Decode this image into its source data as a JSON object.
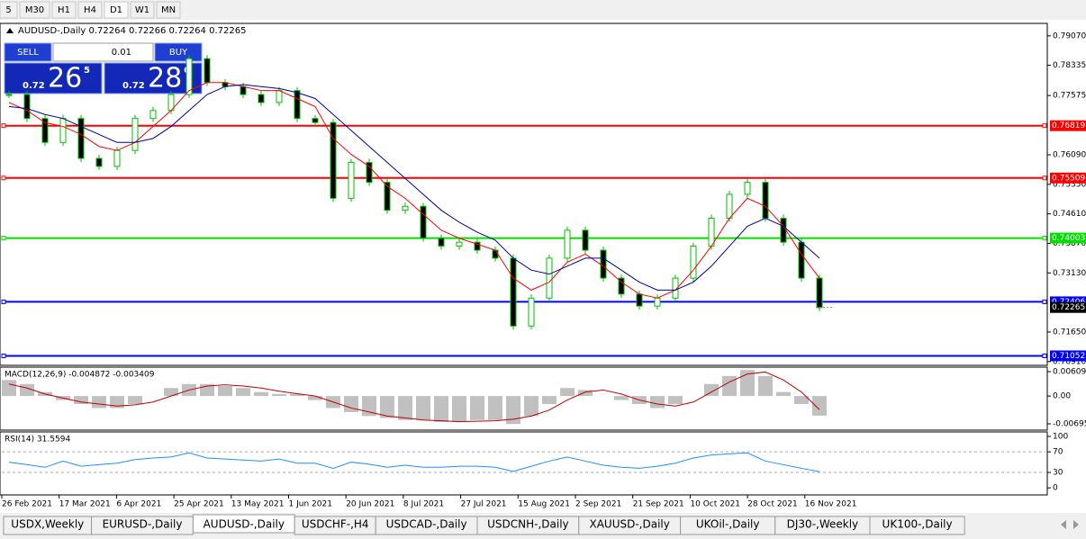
{
  "toolbar": {
    "timeframes": [
      "5",
      "M30",
      "H1",
      "H4",
      "D1",
      "W1",
      "MN"
    ]
  },
  "symbol_header": "AUDUSD-,Daily  0.72264 0.72266 0.72264 0.72265",
  "trade_panel": {
    "sell_label": "SELL",
    "buy_label": "BUY",
    "volume": "0.01",
    "sell_price": {
      "big": "0.72",
      "main": "26",
      "sup": "5"
    },
    "buy_price": {
      "big": "0.72",
      "main": "28",
      "sup": "6"
    }
  },
  "price_chart": {
    "ylim": [
      0.7086,
      0.7936
    ],
    "yticks": [
      {
        "value": 0.7907,
        "label": "0.79070"
      },
      {
        "value": 0.78335,
        "label": "0.78335"
      },
      {
        "value": 0.77575,
        "label": "0.77575"
      },
      {
        "value": 0.7609,
        "label": "0.76090"
      },
      {
        "value": 0.7535,
        "label": "0.75350"
      },
      {
        "value": 0.7461,
        "label": "0.74610"
      },
      {
        "value": 0.7387,
        "label": "0.73870"
      },
      {
        "value": 0.7313,
        "label": "0.73130"
      },
      {
        "value": 0.7165,
        "label": "0.71650"
      },
      {
        "value": 0.7091,
        "label": "0.70910"
      }
    ],
    "levels": [
      {
        "price": 0.76819,
        "color": "#ff0000"
      },
      {
        "price": 0.75509,
        "color": "#ff0000"
      },
      {
        "price": 0.74003,
        "color": "#00e000"
      },
      {
        "price": 0.72406,
        "color": "#0000ff"
      },
      {
        "price": 0.71052,
        "color": "#0000ff"
      }
    ],
    "current_price": 0.72265,
    "candles": [
      0.776,
      0.77,
      0.764,
      0.77,
      0.76,
      0.758,
      0.762,
      0.77,
      0.772,
      0.776,
      0.785,
      0.779,
      0.778,
      0.776,
      0.774,
      0.777,
      0.77,
      0.769,
      0.75,
      0.759,
      0.754,
      0.747,
      0.748,
      0.74,
      0.738,
      0.739,
      0.737,
      0.735,
      0.718,
      0.725,
      0.735,
      0.742,
      0.737,
      0.73,
      0.726,
      0.723,
      0.725,
      0.73,
      0.738,
      0.745,
      0.751,
      0.754,
      0.745,
      0.739,
      0.73,
      0.7226
    ],
    "ma_fast": {
      "color": "#ff0000",
      "values": [
        0.774,
        0.772,
        0.769,
        0.768,
        0.766,
        0.763,
        0.762,
        0.764,
        0.768,
        0.772,
        0.777,
        0.779,
        0.779,
        0.778,
        0.777,
        0.777,
        0.775,
        0.773,
        0.765,
        0.761,
        0.758,
        0.753,
        0.75,
        0.746,
        0.742,
        0.74,
        0.7385,
        0.737,
        0.73,
        0.727,
        0.729,
        0.734,
        0.736,
        0.733,
        0.729,
        0.726,
        0.725,
        0.727,
        0.732,
        0.738,
        0.745,
        0.75,
        0.748,
        0.743,
        0.736,
        0.73
      ]
    },
    "ma_slow": {
      "color": "#0000a0",
      "values": [
        0.773,
        0.7725,
        0.771,
        0.77,
        0.768,
        0.766,
        0.764,
        0.764,
        0.765,
        0.768,
        0.772,
        0.776,
        0.778,
        0.7785,
        0.778,
        0.7775,
        0.7765,
        0.775,
        0.771,
        0.767,
        0.763,
        0.759,
        0.755,
        0.751,
        0.747,
        0.744,
        0.7415,
        0.7395,
        0.735,
        0.732,
        0.731,
        0.733,
        0.735,
        0.735,
        0.732,
        0.729,
        0.727,
        0.727,
        0.729,
        0.733,
        0.738,
        0.743,
        0.745,
        0.743,
        0.739,
        0.735
      ]
    }
  },
  "macd": {
    "label": "MACD(12,26,9) -0.004872 -0.003409",
    "ylim": [
      -0.0083,
      0.007
    ],
    "yticks": [
      {
        "value": 0.006094,
        "label": "0.00609"
      },
      {
        "value": 0,
        "label": "0.00"
      },
      {
        "value": -0.006951,
        "label": "-0.00695"
      }
    ],
    "histogram": [
      0.004,
      0.003,
      0.001,
      -0.001,
      -0.002,
      -0.003,
      -0.003,
      -0.002,
      0,
      0.002,
      0.003,
      0.003,
      0.0025,
      0.002,
      0.001,
      0.0005,
      0.0005,
      -0.001,
      -0.003,
      -0.004,
      -0.005,
      -0.0055,
      -0.006,
      -0.006,
      -0.0065,
      -0.0065,
      -0.006,
      -0.006,
      -0.007,
      -0.005,
      -0.002,
      0.002,
      0.0015,
      0,
      -0.001,
      -0.002,
      -0.003,
      -0.002,
      0,
      0.003,
      0.005,
      0.0065,
      0.005,
      0.001,
      -0.002,
      -0.0049
    ],
    "signal": {
      "color": "#c00000",
      "values": [
        0.003,
        0.002,
        0.0005,
        -0.0005,
        -0.0015,
        -0.002,
        -0.0025,
        -0.0022,
        -0.0015,
        0,
        0.0015,
        0.0025,
        0.0028,
        0.0025,
        0.002,
        0.0012,
        0.0006,
        0,
        -0.0015,
        -0.003,
        -0.004,
        -0.005,
        -0.0055,
        -0.006,
        -0.0062,
        -0.0064,
        -0.0063,
        -0.0062,
        -0.0058,
        -0.005,
        -0.0035,
        -0.001,
        0.001,
        0.0015,
        0.0005,
        -0.001,
        -0.002,
        -0.0025,
        -0.0015,
        0.001,
        0.0035,
        0.0055,
        0.006,
        0.004,
        0.001,
        -0.0034
      ]
    }
  },
  "rsi": {
    "label": "RSI(14) 31.5594",
    "ylim": [
      -12,
      107
    ],
    "yticks": [
      100,
      70,
      30,
      0
    ],
    "color": "#1e90ff",
    "values": [
      50,
      45,
      40,
      52,
      42,
      45,
      48,
      55,
      58,
      60,
      68,
      58,
      56,
      54,
      52,
      56,
      48,
      48,
      38,
      50,
      46,
      40,
      44,
      40,
      40,
      42,
      42,
      40,
      32,
      42,
      52,
      60,
      52,
      44,
      40,
      38,
      42,
      48,
      58,
      64,
      66,
      68,
      52,
      45,
      38,
      31.5594
    ]
  },
  "date_labels": [
    "26 Feb 2021",
    "17 Mar 2021",
    "6 Apr 2021",
    "25 Apr 2021",
    "13 May 2021",
    "1 Jun 2021",
    "20 Jun 2021",
    "8 Jul 2021",
    "27 Jul 2021",
    "15 Aug 2021",
    "2 Sep 2021",
    "21 Sep 2021",
    "10 Oct 2021",
    "28 Oct 2021",
    "16 Nov 2021"
  ],
  "tabs": {
    "items": [
      "USDX,Weekly",
      "EURUSD-,Daily",
      "AUDUSD-,Daily",
      "USDCHF-,H4",
      "USDCAD-,Daily",
      "USDCNH-,Daily",
      "XAUUSD-,Daily",
      "UKOil-,Daily",
      "DJ30-,Weekly",
      "UK100-,Daily"
    ],
    "active": 2
  }
}
